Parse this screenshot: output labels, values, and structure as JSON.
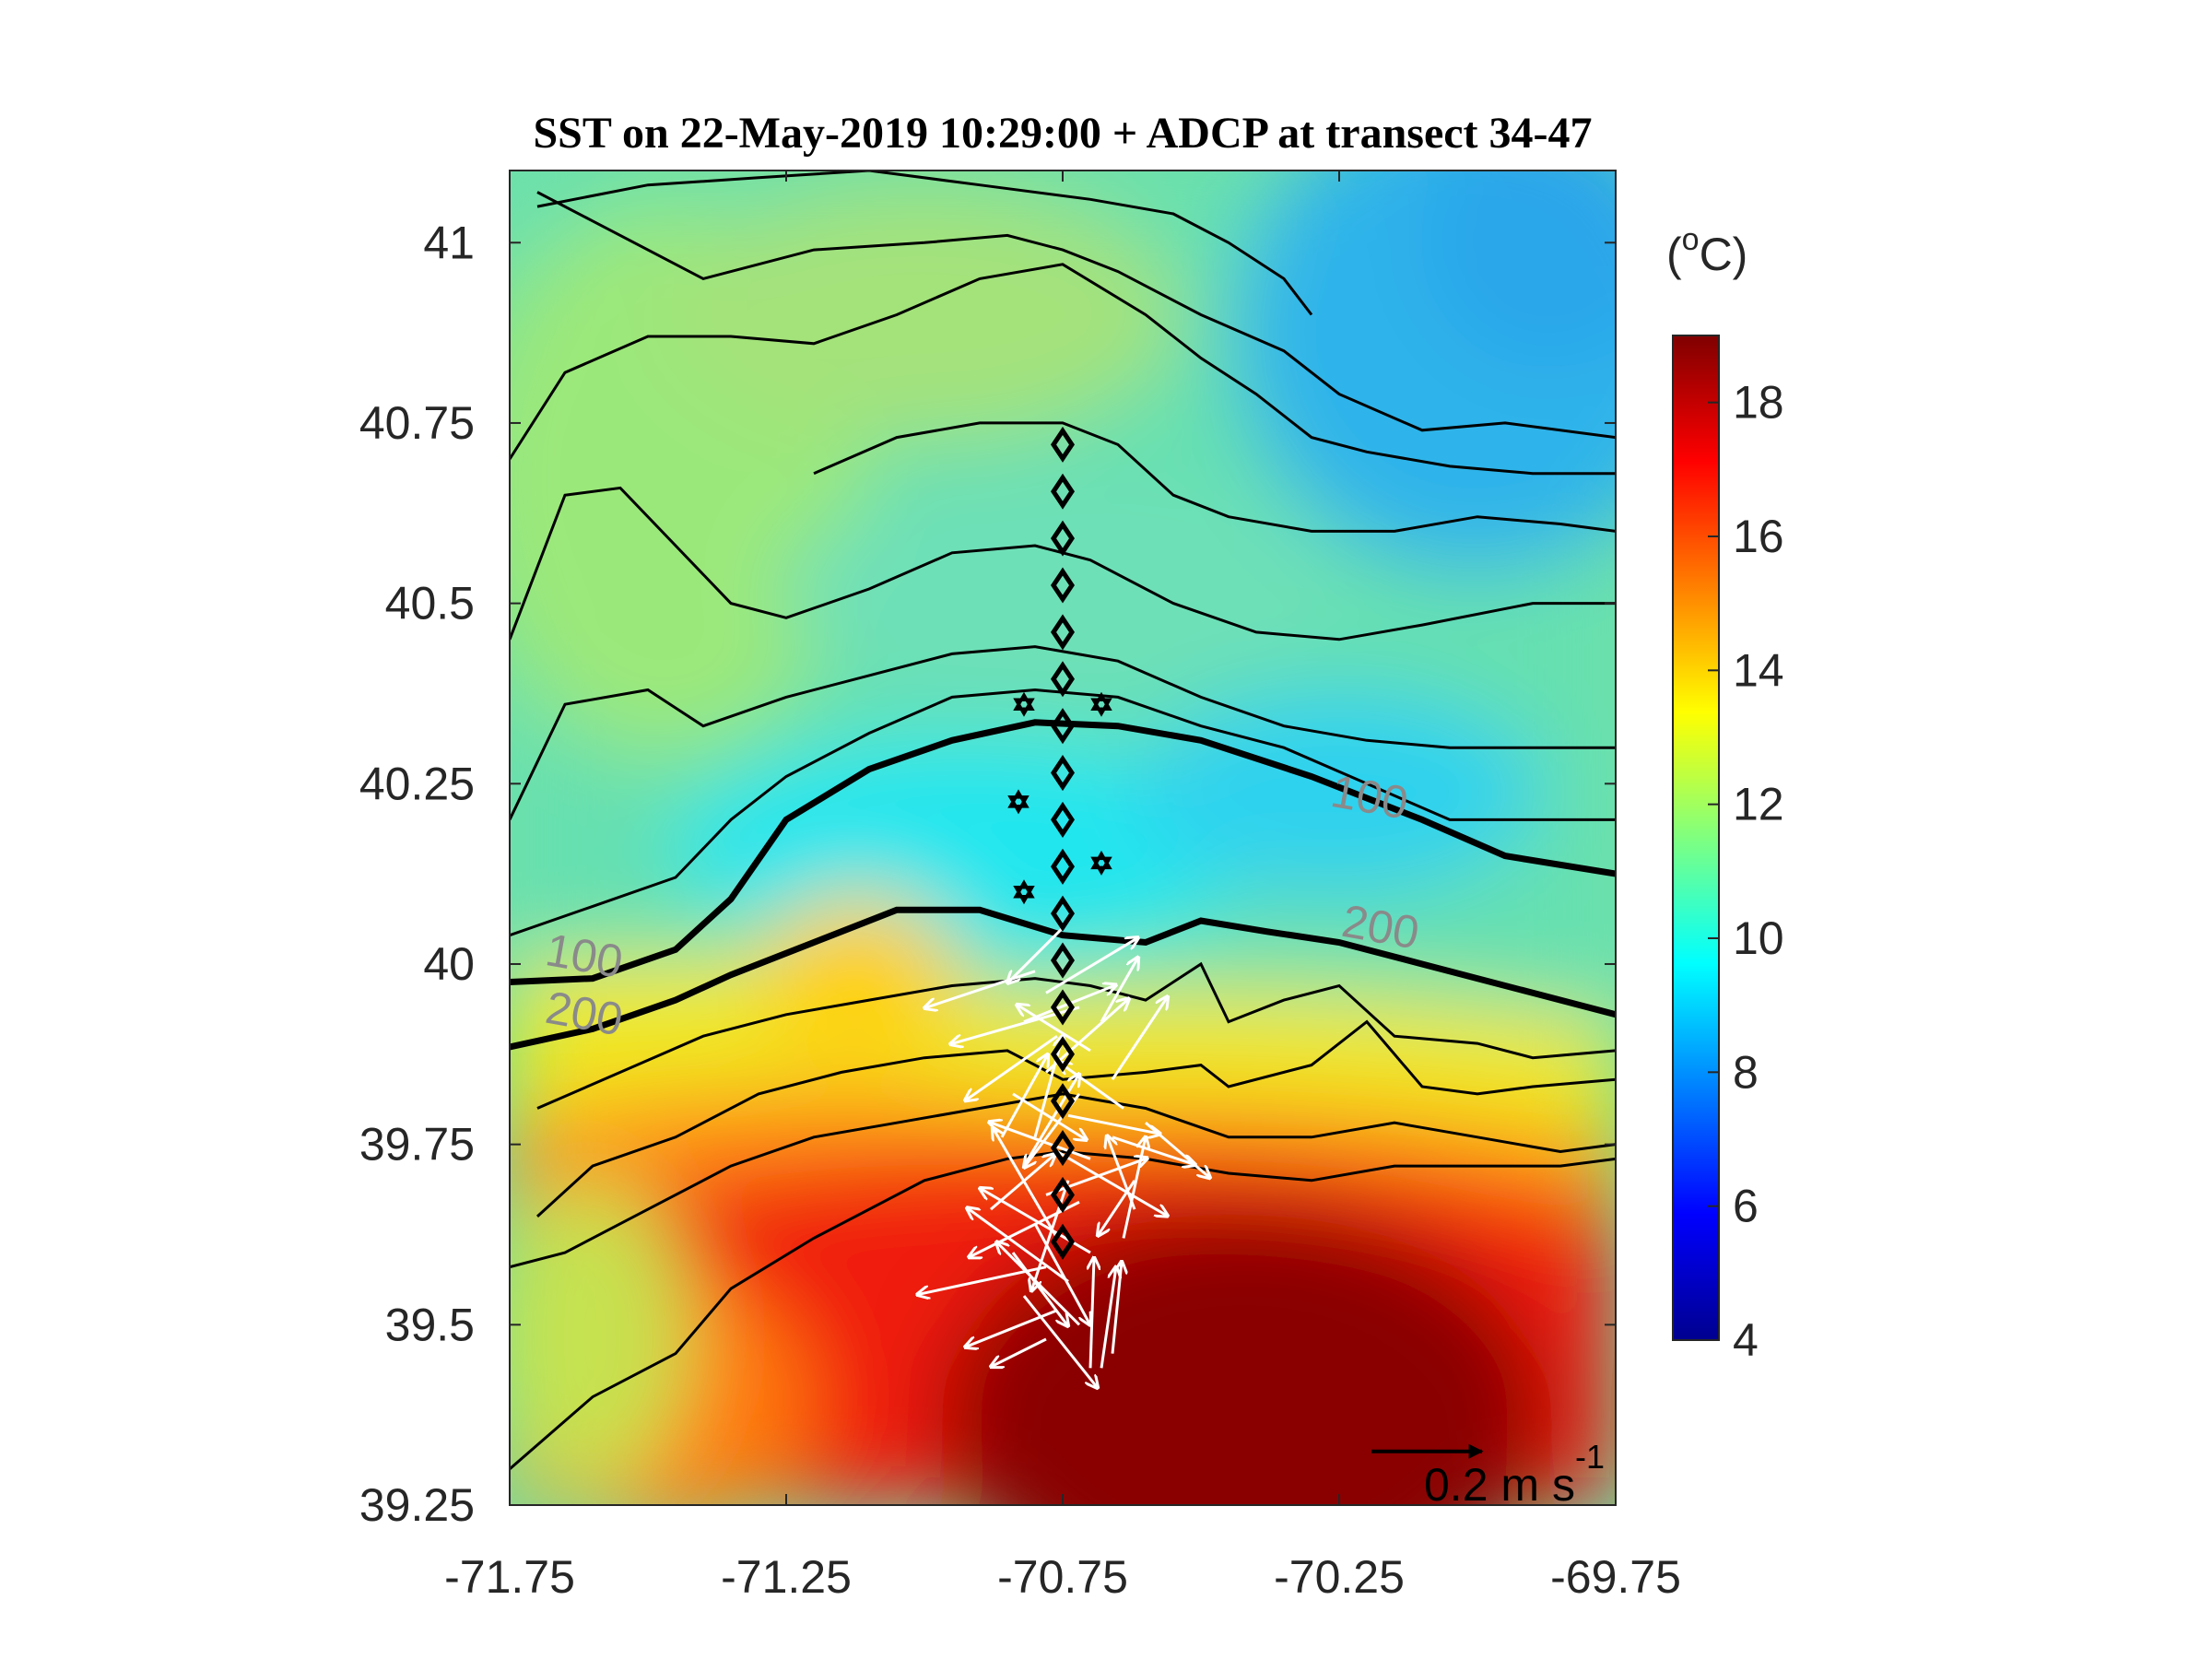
{
  "chart_data": {
    "type": "heatmap",
    "title": "SST on 22-May-2019 10:29:00 + ADCP at transect 34-47",
    "xlim": [
      -71.75,
      -69.75
    ],
    "ylim": [
      39.25,
      41.1
    ],
    "x_ticks": [
      "-71.75",
      "-71.25",
      "-70.75",
      "-70.25",
      "-69.75"
    ],
    "x_tick_values": [
      -71.75,
      -71.25,
      -70.75,
      -70.25,
      -69.75
    ],
    "y_ticks": [
      "39.25",
      "39.5",
      "39.75",
      "40",
      "40.25",
      "40.5",
      "40.75",
      "41"
    ],
    "y_tick_values": [
      39.25,
      39.5,
      39.75,
      40.0,
      40.25,
      40.5,
      40.75,
      41.0
    ],
    "colorbar": {
      "unit_base": "(",
      "unit_sup": "o",
      "unit_rest": "C)",
      "range": [
        4,
        19
      ],
      "ticks": [
        "4",
        "6",
        "8",
        "10",
        "12",
        "14",
        "16",
        "18"
      ],
      "tick_values": [
        4,
        6,
        8,
        10,
        12,
        14,
        16,
        18
      ],
      "colormap": "jet"
    },
    "isobath_labels": [
      {
        "text": "100",
        "lon": -71.62,
        "lat": 39.99
      },
      {
        "text": "200",
        "lon": -71.62,
        "lat": 39.91
      },
      {
        "text": "100",
        "lon": -70.2,
        "lat": 40.21
      },
      {
        "text": "200",
        "lon": -70.18,
        "lat": 40.03
      }
    ],
    "isobaths": [
      {
        "depth": "100",
        "bold": true,
        "points": [
          [
            -71.75,
            39.975
          ],
          [
            -71.6,
            39.98
          ],
          [
            -71.45,
            40.02
          ],
          [
            -71.35,
            40.09
          ],
          [
            -71.25,
            40.2
          ],
          [
            -71.1,
            40.27
          ],
          [
            -70.95,
            40.31
          ],
          [
            -70.8,
            40.335
          ],
          [
            -70.65,
            40.33
          ],
          [
            -70.5,
            40.31
          ],
          [
            -70.3,
            40.26
          ],
          [
            -70.1,
            40.2
          ],
          [
            -69.95,
            40.15
          ],
          [
            -69.75,
            40.125
          ]
        ]
      },
      {
        "depth": "200",
        "bold": true,
        "points": [
          [
            -71.75,
            39.885
          ],
          [
            -71.6,
            39.91
          ],
          [
            -71.45,
            39.95
          ],
          [
            -71.35,
            39.985
          ],
          [
            -71.2,
            40.03
          ],
          [
            -71.05,
            40.075
          ],
          [
            -70.9,
            40.075
          ],
          [
            -70.75,
            40.04
          ],
          [
            -70.6,
            40.03
          ],
          [
            -70.5,
            40.06
          ],
          [
            -70.38,
            40.045
          ],
          [
            -70.25,
            40.03
          ],
          [
            -70.1,
            40.0
          ],
          [
            -69.9,
            39.96
          ],
          [
            -69.75,
            39.93
          ]
        ]
      }
    ],
    "contours": [
      {
        "points": [
          [
            -71.7,
            41.07
          ],
          [
            -71.6,
            41.03
          ],
          [
            -71.4,
            40.95
          ],
          [
            -71.2,
            40.99
          ],
          [
            -71.0,
            41.0
          ],
          [
            -70.85,
            41.01
          ],
          [
            -70.75,
            40.99
          ],
          [
            -70.65,
            40.96
          ],
          [
            -70.5,
            40.9
          ],
          [
            -70.35,
            40.85
          ],
          [
            -70.25,
            40.79
          ],
          [
            -70.1,
            40.74
          ],
          [
            -69.95,
            40.75
          ],
          [
            -69.75,
            40.73
          ]
        ]
      },
      {
        "points": [
          [
            -71.7,
            41.05
          ],
          [
            -71.5,
            41.08
          ],
          [
            -71.3,
            41.09
          ],
          [
            -71.1,
            41.1
          ],
          [
            -70.9,
            41.08
          ],
          [
            -70.7,
            41.06
          ],
          [
            -70.55,
            41.04
          ],
          [
            -70.45,
            41.0
          ],
          [
            -70.35,
            40.95
          ],
          [
            -70.3,
            40.9
          ]
        ]
      },
      {
        "points": [
          [
            -71.75,
            40.7
          ],
          [
            -71.65,
            40.82
          ],
          [
            -71.5,
            40.87
          ],
          [
            -71.35,
            40.87
          ],
          [
            -71.2,
            40.86
          ],
          [
            -71.05,
            40.9
          ],
          [
            -70.9,
            40.95
          ],
          [
            -70.75,
            40.97
          ],
          [
            -70.6,
            40.9
          ],
          [
            -70.5,
            40.84
          ],
          [
            -70.4,
            40.79
          ],
          [
            -70.3,
            40.73
          ],
          [
            -70.2,
            40.71
          ],
          [
            -70.05,
            40.69
          ],
          [
            -69.9,
            40.68
          ],
          [
            -69.75,
            40.68
          ]
        ]
      },
      {
        "points": [
          [
            -71.2,
            40.68
          ],
          [
            -71.05,
            40.73
          ],
          [
            -70.9,
            40.75
          ],
          [
            -70.75,
            40.75
          ],
          [
            -70.65,
            40.72
          ],
          [
            -70.55,
            40.65
          ],
          [
            -70.45,
            40.62
          ],
          [
            -70.3,
            40.6
          ],
          [
            -70.15,
            40.6
          ],
          [
            -70.0,
            40.62
          ],
          [
            -69.85,
            40.61
          ],
          [
            -69.75,
            40.6
          ]
        ]
      },
      {
        "points": [
          [
            -71.75,
            40.45
          ],
          [
            -71.65,
            40.65
          ],
          [
            -71.55,
            40.66
          ],
          [
            -71.45,
            40.58
          ],
          [
            -71.35,
            40.5
          ],
          [
            -71.25,
            40.48
          ],
          [
            -71.1,
            40.52
          ],
          [
            -70.95,
            40.57
          ],
          [
            -70.8,
            40.58
          ],
          [
            -70.7,
            40.56
          ],
          [
            -70.55,
            40.5
          ],
          [
            -70.4,
            40.46
          ],
          [
            -70.25,
            40.45
          ],
          [
            -70.1,
            40.47
          ],
          [
            -69.9,
            40.5
          ],
          [
            -69.75,
            40.5
          ]
        ]
      },
      {
        "points": [
          [
            -71.75,
            40.2
          ],
          [
            -71.65,
            40.36
          ],
          [
            -71.5,
            40.38
          ],
          [
            -71.4,
            40.33
          ],
          [
            -71.25,
            40.37
          ],
          [
            -71.1,
            40.4
          ],
          [
            -70.95,
            40.43
          ],
          [
            -70.8,
            40.44
          ],
          [
            -70.65,
            40.42
          ],
          [
            -70.5,
            40.37
          ],
          [
            -70.35,
            40.33
          ],
          [
            -70.2,
            40.31
          ],
          [
            -70.05,
            40.3
          ],
          [
            -69.9,
            40.3
          ],
          [
            -69.75,
            40.3
          ]
        ]
      },
      {
        "points": [
          [
            -71.75,
            40.04
          ],
          [
            -71.6,
            40.08
          ],
          [
            -71.45,
            40.12
          ],
          [
            -71.35,
            40.2
          ],
          [
            -71.25,
            40.26
          ],
          [
            -71.1,
            40.32
          ],
          [
            -70.95,
            40.37
          ],
          [
            -70.8,
            40.38
          ],
          [
            -70.65,
            40.37
          ],
          [
            -70.5,
            40.33
          ],
          [
            -70.35,
            40.3
          ],
          [
            -70.2,
            40.25
          ],
          [
            -70.05,
            40.2
          ],
          [
            -69.9,
            40.2
          ],
          [
            -69.75,
            40.2
          ]
        ]
      },
      {
        "points": [
          [
            -71.7,
            39.8
          ],
          [
            -71.55,
            39.85
          ],
          [
            -71.4,
            39.9
          ],
          [
            -71.25,
            39.93
          ],
          [
            -71.1,
            39.95
          ],
          [
            -70.95,
            39.97
          ],
          [
            -70.8,
            39.98
          ],
          [
            -70.7,
            39.97
          ],
          [
            -70.6,
            39.95
          ],
          [
            -70.5,
            40.0
          ],
          [
            -70.45,
            39.92
          ],
          [
            -70.35,
            39.95
          ],
          [
            -70.25,
            39.97
          ],
          [
            -70.15,
            39.9
          ],
          [
            -70.0,
            39.89
          ],
          [
            -69.9,
            39.87
          ],
          [
            -69.75,
            39.88
          ]
        ]
      },
      {
        "points": [
          [
            -71.7,
            39.65
          ],
          [
            -71.6,
            39.72
          ],
          [
            -71.45,
            39.76
          ],
          [
            -71.3,
            39.82
          ],
          [
            -71.15,
            39.85
          ],
          [
            -71.0,
            39.87
          ],
          [
            -70.85,
            39.88
          ],
          [
            -70.75,
            39.84
          ],
          [
            -70.6,
            39.85
          ],
          [
            -70.5,
            39.86
          ],
          [
            -70.45,
            39.83
          ],
          [
            -70.3,
            39.86
          ],
          [
            -70.2,
            39.92
          ],
          [
            -70.1,
            39.83
          ],
          [
            -70.0,
            39.82
          ],
          [
            -69.9,
            39.83
          ],
          [
            -69.75,
            39.84
          ]
        ]
      },
      {
        "points": [
          [
            -71.75,
            39.58
          ],
          [
            -71.65,
            39.6
          ],
          [
            -71.5,
            39.66
          ],
          [
            -71.35,
            39.72
          ],
          [
            -71.2,
            39.76
          ],
          [
            -71.05,
            39.78
          ],
          [
            -70.9,
            39.8
          ],
          [
            -70.75,
            39.82
          ],
          [
            -70.6,
            39.8
          ],
          [
            -70.45,
            39.76
          ],
          [
            -70.3,
            39.76
          ],
          [
            -70.15,
            39.78
          ],
          [
            -70.0,
            39.76
          ],
          [
            -69.85,
            39.74
          ],
          [
            -69.75,
            39.75
          ]
        ]
      },
      {
        "points": [
          [
            -71.75,
            39.3
          ],
          [
            -71.6,
            39.4
          ],
          [
            -71.45,
            39.46
          ],
          [
            -71.35,
            39.55
          ],
          [
            -71.2,
            39.62
          ],
          [
            -71.0,
            39.7
          ],
          [
            -70.85,
            39.73
          ],
          [
            -70.75,
            39.74
          ],
          [
            -70.6,
            39.73
          ],
          [
            -70.45,
            39.71
          ],
          [
            -70.3,
            39.7
          ],
          [
            -70.15,
            39.72
          ],
          [
            -70.0,
            39.72
          ],
          [
            -69.85,
            39.72
          ],
          [
            -69.75,
            39.73
          ]
        ]
      }
    ],
    "stations": {
      "lon": -70.75,
      "lat": [
        40.72,
        40.655,
        40.59,
        40.525,
        40.46,
        40.395,
        40.33,
        40.265,
        40.2,
        40.135,
        40.07,
        40.005,
        39.94,
        39.875,
        39.81,
        39.745,
        39.68,
        39.615
      ]
    },
    "moorings": [
      [
        -70.82,
        40.36
      ],
      [
        -70.68,
        40.36
      ],
      [
        -70.83,
        40.225
      ],
      [
        -70.68,
        40.14
      ],
      [
        -70.82,
        40.1
      ]
    ],
    "adcp_vectors": [
      {
        "lon": -70.75,
        "lat": 40.05,
        "u": -0.3,
        "v": -0.3
      },
      {
        "lon": -70.8,
        "lat": 39.99,
        "u": -0.6,
        "v": -0.2
      },
      {
        "lon": -70.78,
        "lat": 39.96,
        "u": 0.5,
        "v": 0.3
      },
      {
        "lon": -70.72,
        "lat": 39.94,
        "u": -0.7,
        "v": -0.2
      },
      {
        "lon": -70.76,
        "lat": 39.9,
        "u": -0.5,
        "v": -0.35
      },
      {
        "lon": -70.7,
        "lat": 39.88,
        "u": -0.4,
        "v": 0.25
      },
      {
        "lon": -70.78,
        "lat": 39.85,
        "u": 0.45,
        "v": 0.4
      },
      {
        "lon": -70.72,
        "lat": 39.82,
        "u": -0.3,
        "v": -0.4
      },
      {
        "lon": -70.74,
        "lat": 39.79,
        "u": 0.5,
        "v": -0.1
      },
      {
        "lon": -70.8,
        "lat": 39.76,
        "u": 0.15,
        "v": 0.55
      },
      {
        "lon": -70.76,
        "lat": 39.74,
        "u": 0.6,
        "v": -0.35
      },
      {
        "lon": -70.7,
        "lat": 39.73,
        "u": -0.55,
        "v": 0.2
      },
      {
        "lon": -70.82,
        "lat": 39.72,
        "u": 0.3,
        "v": 0.5
      },
      {
        "lon": -70.74,
        "lat": 39.7,
        "u": -0.2,
        "v": -0.6
      },
      {
        "lon": -70.78,
        "lat": 39.68,
        "u": 0.55,
        "v": 0.2
      },
      {
        "lon": -70.72,
        "lat": 39.67,
        "u": -0.6,
        "v": -0.3
      },
      {
        "lon": -70.8,
        "lat": 39.64,
        "u": 0.3,
        "v": -0.55
      },
      {
        "lon": -70.76,
        "lat": 39.62,
        "u": -0.35,
        "v": 0.6
      },
      {
        "lon": -70.7,
        "lat": 39.6,
        "u": -0.6,
        "v": 0.35
      },
      {
        "lon": -70.78,
        "lat": 39.58,
        "u": -0.7,
        "v": -0.15
      },
      {
        "lon": -70.74,
        "lat": 39.56,
        "u": -0.55,
        "v": 0.4
      },
      {
        "lon": -70.82,
        "lat": 39.54,
        "u": 0.4,
        "v": -0.5
      },
      {
        "lon": -70.76,
        "lat": 39.52,
        "u": -0.5,
        "v": -0.2
      },
      {
        "lon": -70.72,
        "lat": 39.5,
        "u": -0.45,
        "v": 0.45
      },
      {
        "lon": -70.78,
        "lat": 39.48,
        "u": -0.3,
        "v": -0.15
      },
      {
        "lon": -70.7,
        "lat": 39.44,
        "u": 0.02,
        "v": 0.6
      },
      {
        "lon": -70.68,
        "lat": 39.44,
        "u": 0.08,
        "v": 0.55
      },
      {
        "lon": -70.66,
        "lat": 39.46,
        "u": 0.05,
        "v": 0.5
      },
      {
        "lon": -70.64,
        "lat": 39.62,
        "u": 0.12,
        "v": 0.55
      },
      {
        "lon": -70.62,
        "lat": 39.7,
        "u": -0.2,
        "v": -0.3
      },
      {
        "lon": -70.66,
        "lat": 39.76,
        "u": 0.45,
        "v": -0.15
      },
      {
        "lon": -70.66,
        "lat": 39.84,
        "u": 0.3,
        "v": 0.45
      },
      {
        "lon": -70.64,
        "lat": 39.8,
        "u": -0.35,
        "v": 0.25
      },
      {
        "lon": -70.6,
        "lat": 39.78,
        "u": 0.35,
        "v": -0.3
      },
      {
        "lon": -70.62,
        "lat": 39.66,
        "u": -0.15,
        "v": 0.4
      },
      {
        "lon": -70.68,
        "lat": 39.92,
        "u": 0.2,
        "v": 0.35
      },
      {
        "lon": -70.82,
        "lat": 39.92,
        "u": 0.5,
        "v": 0.2
      },
      {
        "lon": -70.84,
        "lat": 39.82,
        "u": 0.4,
        "v": -0.25
      },
      {
        "lon": -70.86,
        "lat": 39.76,
        "u": 0.25,
        "v": 0.45
      },
      {
        "lon": -70.88,
        "lat": 39.66,
        "u": 0.35,
        "v": 0.3
      },
      {
        "lon": -70.84,
        "lat": 39.6,
        "u": 0.3,
        "v": -0.4
      }
    ],
    "scale_vector": {
      "label": "0.2 m s",
      "sup": "-1",
      "lon": -70.1,
      "lat": 39.35,
      "u": 0.2
    }
  }
}
